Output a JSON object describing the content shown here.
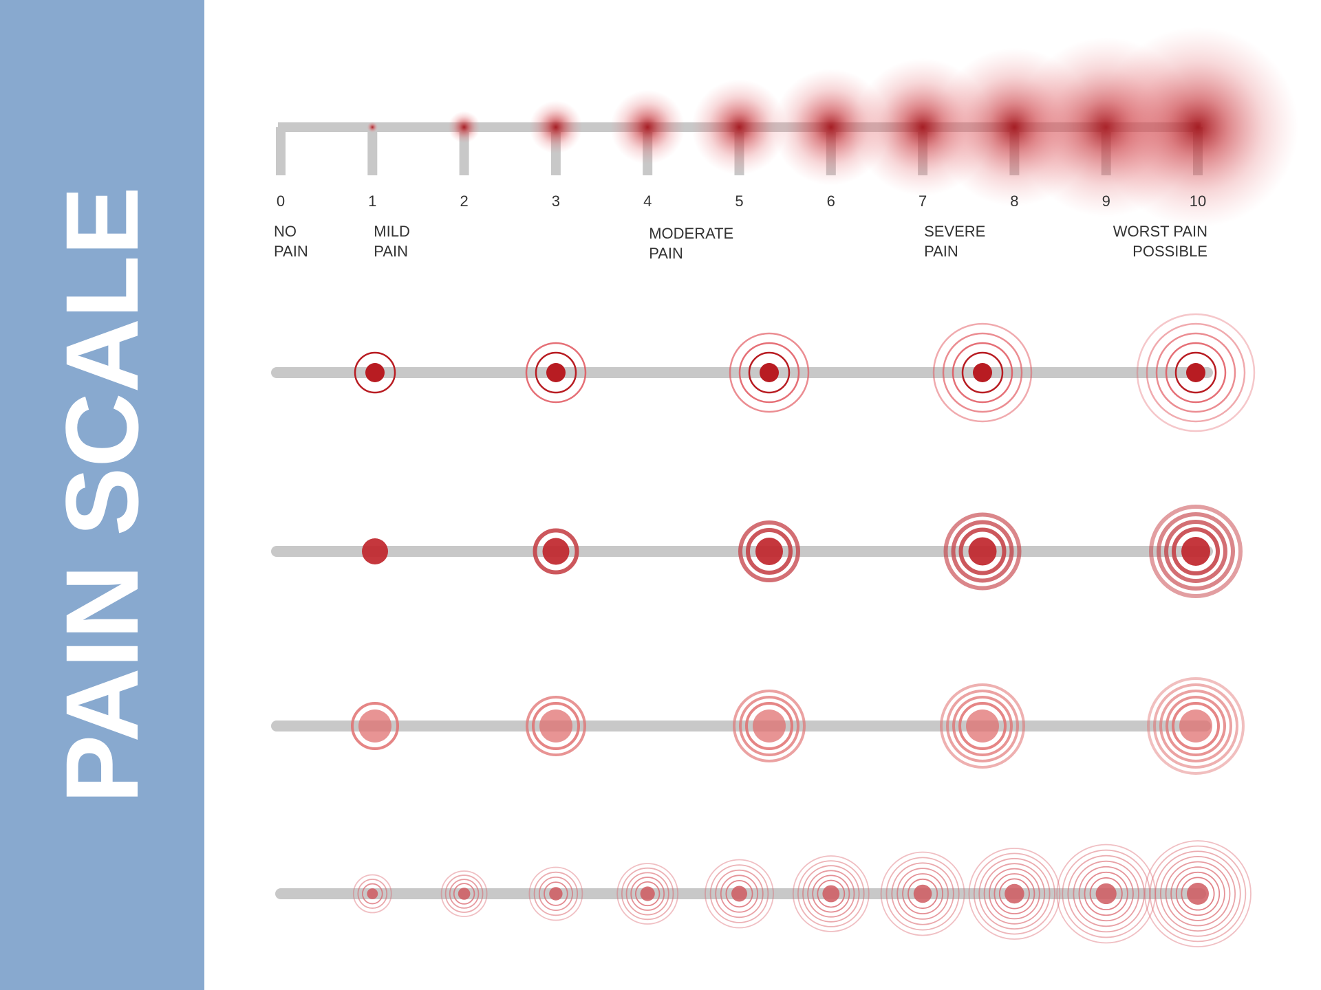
{
  "title": "PAIN SCALE",
  "scale": {
    "numbers": [
      "0",
      "1",
      "2",
      "3",
      "4",
      "5",
      "6",
      "7",
      "8",
      "9",
      "10"
    ],
    "labels": [
      {
        "lines": [
          "NO",
          "PAIN"
        ],
        "at": 0,
        "align": "start"
      },
      {
        "lines": [
          "MILD",
          "PAIN"
        ],
        "at": 1,
        "align": "start"
      },
      {
        "lines": [
          "MODERATE",
          "PAIN"
        ],
        "at": 4,
        "align": "start"
      },
      {
        "lines": [
          "SEVERE",
          "PAIN"
        ],
        "at": 7,
        "align": "start"
      },
      {
        "lines": [
          "WORST PAIN",
          "POSSIBLE"
        ],
        "at": 10,
        "align": "end"
      }
    ]
  },
  "rows": [
    {
      "style": "outline-rings",
      "levels": [
        1,
        3,
        5,
        7,
        9
      ]
    },
    {
      "style": "thick-rings",
      "levels": [
        1,
        3,
        5,
        7,
        9
      ]
    },
    {
      "style": "soft-rings",
      "levels": [
        1,
        3,
        5,
        7,
        9
      ]
    },
    {
      "style": "fine-rings",
      "levels": [
        1,
        2,
        3,
        4,
        5,
        6,
        7,
        8,
        9,
        10
      ]
    }
  ],
  "colors": {
    "sidebar": "#88a9cf",
    "bar": "#c8c8c8",
    "red": "#b81c22",
    "pink": "#e07070",
    "text": "#333333"
  }
}
